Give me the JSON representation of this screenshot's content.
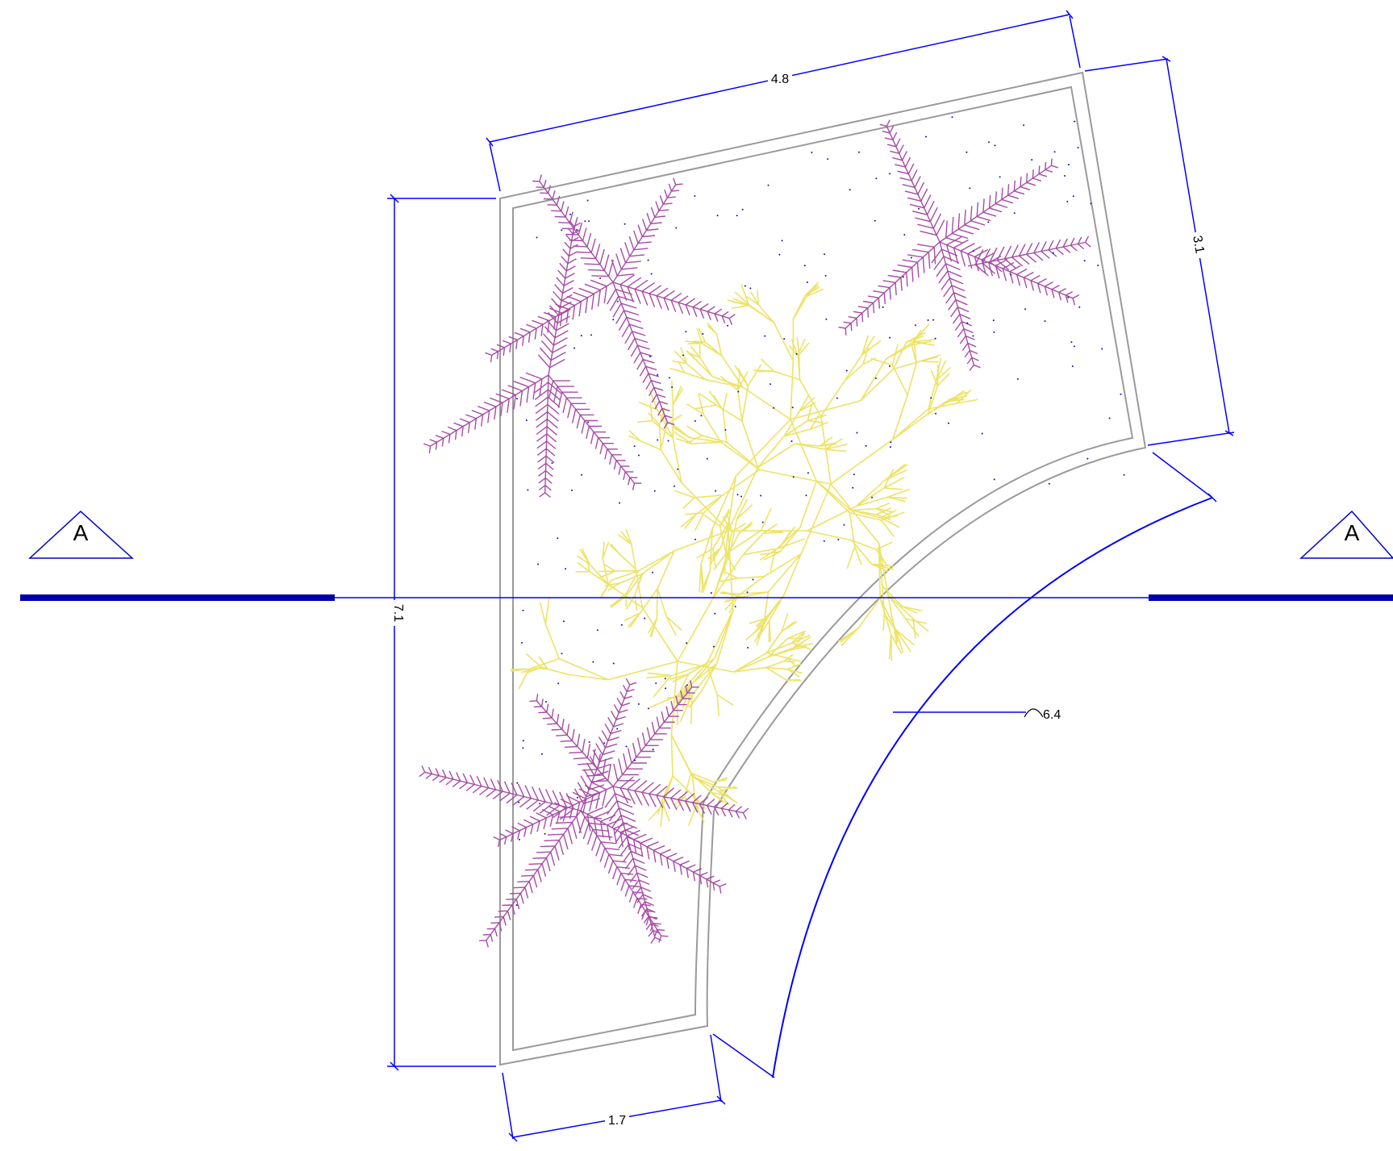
{
  "drawing": {
    "section_label_left": "A",
    "section_label_right": "A",
    "dimensions": {
      "top": "4.8",
      "right": "3.1",
      "left": "7.1",
      "bottom": "1.7",
      "radius": "6.4"
    }
  },
  "colors": {
    "dimension": "#0000ff",
    "section_bar": "#0000aa",
    "outline": "#999999",
    "fern": "#a64ca6",
    "branch": "#e8e050",
    "dots": "#00008b"
  },
  "icons": {
    "radius": "arc-symbol-icon"
  }
}
